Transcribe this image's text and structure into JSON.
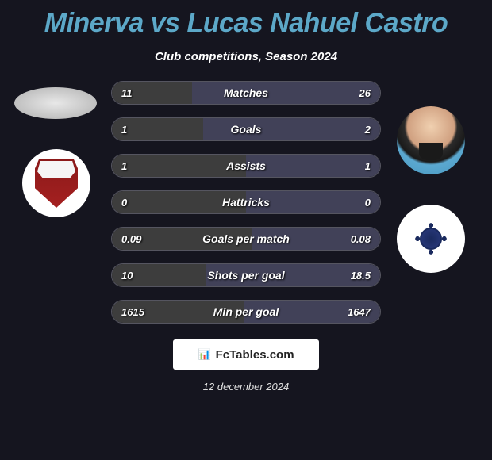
{
  "header": {
    "player1_name": "Minerva",
    "vs_text": "vs",
    "player2_name": "Lucas Nahuel Castro"
  },
  "subtitle": "Club competitions, Season 2024",
  "colors": {
    "title_color": "#5ca8c8",
    "background": "#15151f",
    "stat_fill_left": "#3d3d3d",
    "stat_fill_right": "#414158",
    "stat_border": "#555560",
    "text_white": "#ffffff"
  },
  "stats": [
    {
      "label": "Matches",
      "left_value": "11",
      "right_value": "26",
      "left_pct": 30,
      "right_pct": 70
    },
    {
      "label": "Goals",
      "left_value": "1",
      "right_value": "2",
      "left_pct": 34,
      "right_pct": 66
    },
    {
      "label": "Assists",
      "left_value": "1",
      "right_value": "1",
      "left_pct": 50,
      "right_pct": 50
    },
    {
      "label": "Hattricks",
      "left_value": "0",
      "right_value": "0",
      "left_pct": 50,
      "right_pct": 50
    },
    {
      "label": "Goals per match",
      "left_value": "0.09",
      "right_value": "0.08",
      "left_pct": 52,
      "right_pct": 48
    },
    {
      "label": "Shots per goal",
      "left_value": "10",
      "right_value": "18.5",
      "left_pct": 35,
      "right_pct": 65
    },
    {
      "label": "Min per goal",
      "left_value": "1615",
      "right_value": "1647",
      "left_pct": 49,
      "right_pct": 51
    }
  ],
  "brand": {
    "label": "FcTables.com"
  },
  "date": "12 december 2024"
}
